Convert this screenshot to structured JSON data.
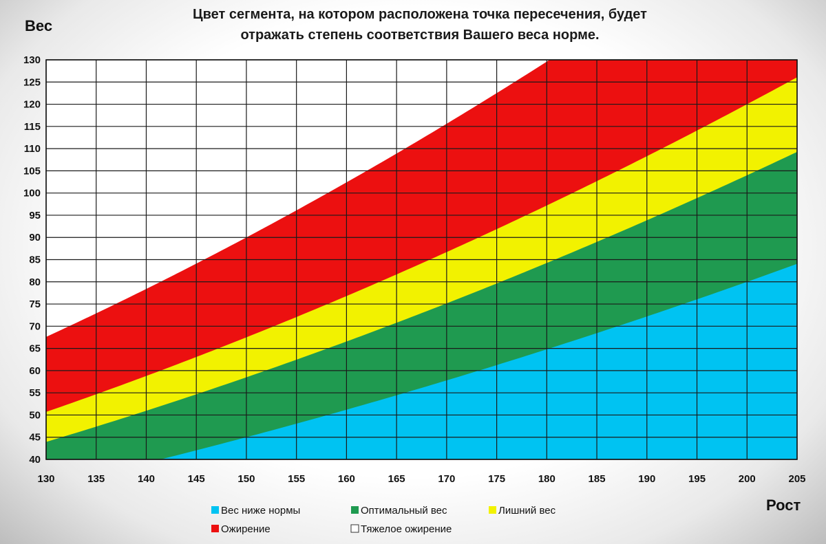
{
  "chart_data": {
    "type": "area",
    "title_lines": [
      "Цвет сегмента, на котором расположена точка пересечения, будет",
      "отражать степень соответствия Вашего веса норме."
    ],
    "xlabel": "Рост",
    "ylabel": "Вес",
    "xlim": [
      130,
      205
    ],
    "ylim": [
      40,
      130
    ],
    "x_ticks": [
      130,
      135,
      140,
      145,
      150,
      155,
      160,
      165,
      170,
      175,
      180,
      185,
      190,
      195,
      200,
      205
    ],
    "y_ticks": [
      40,
      45,
      50,
      55,
      60,
      65,
      70,
      75,
      80,
      85,
      90,
      95,
      100,
      105,
      110,
      115,
      120,
      125,
      130
    ],
    "grid": true,
    "legend_position": "bottom",
    "series": [
      {
        "name": "Вес ниже нормы",
        "color": "#00c3f2",
        "upper_boundary_bmi": 20
      },
      {
        "name": "Оптимальный вес",
        "color": "#1f9a50",
        "upper_boundary_bmi": 26
      },
      {
        "name": "Лишний вес",
        "color": "#f2f200",
        "upper_boundary_bmi": 30
      },
      {
        "name": "Ожирение",
        "color": "#ec1010",
        "upper_boundary_bmi": 40
      },
      {
        "name": "Тяжелое ожирение",
        "color": "#ffffff"
      }
    ]
  }
}
